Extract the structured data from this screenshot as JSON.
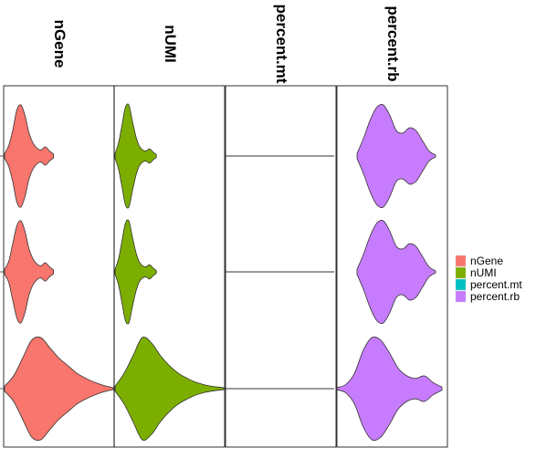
{
  "chart_data": {
    "type": "violin",
    "orientation": "horizontal",
    "panels": [
      {
        "name": "nGene",
        "color": "#F8766D",
        "violins": [
          {
            "spread": 0.0,
            "center": 0.0,
            "tail": 0.45,
            "widths": [
              0.05,
              0.2,
              0.5,
              0.9,
              1.0,
              0.8,
              0.45,
              0.25,
              0.15,
              0.12,
              0.18,
              0.1,
              0.04
            ]
          },
          {
            "spread": 0.0,
            "center": 0.0,
            "tail": 0.45,
            "widths": [
              0.05,
              0.2,
              0.55,
              0.9,
              1.0,
              0.8,
              0.45,
              0.25,
              0.15,
              0.12,
              0.18,
              0.1,
              0.04
            ]
          },
          {
            "spread": 0.0,
            "center": 0.0,
            "tail": 1.0,
            "widths": [
              0.05,
              0.25,
              0.6,
              0.95,
              1.0,
              0.8,
              0.6,
              0.45,
              0.3,
              0.2,
              0.12,
              0.06,
              0.02
            ]
          }
        ]
      },
      {
        "name": "nUMI",
        "color": "#7CAE00",
        "violins": [
          {
            "spread": 0.0,
            "center": 0.0,
            "tail": 0.38,
            "widths": [
              0.05,
              0.25,
              0.6,
              0.95,
              1.0,
              0.7,
              0.4,
              0.2,
              0.12,
              0.1,
              0.14,
              0.08,
              0.03
            ]
          },
          {
            "spread": 0.0,
            "center": 0.0,
            "tail": 0.38,
            "widths": [
              0.05,
              0.25,
              0.6,
              0.95,
              1.0,
              0.7,
              0.4,
              0.2,
              0.12,
              0.1,
              0.14,
              0.08,
              0.03
            ]
          },
          {
            "spread": 0.0,
            "center": 0.0,
            "tail": 1.0,
            "widths": [
              0.05,
              0.3,
              0.65,
              1.0,
              0.9,
              0.65,
              0.45,
              0.3,
              0.2,
              0.12,
              0.07,
              0.04,
              0.02
            ]
          }
        ]
      },
      {
        "name": "percent.mt",
        "color": "#00BFC4",
        "violins": [
          {
            "spread": 0.0,
            "center": 0.0,
            "tail": 0.0,
            "widths": []
          },
          {
            "spread": 0.0,
            "center": 0.0,
            "tail": 0.0,
            "widths": []
          },
          {
            "spread": 0.0,
            "center": 0.0,
            "tail": 0.0,
            "widths": []
          }
        ]
      },
      {
        "name": "percent.rb",
        "color": "#C77CFF",
        "violins": [
          {
            "spread": 0.0,
            "center": 0.0,
            "tail": 0.0,
            "widths": [
              0.05,
              0.35,
              0.7,
              0.95,
              1.0,
              0.8,
              0.5,
              0.45,
              0.55,
              0.5,
              0.3,
              0.1,
              0.02
            ]
          },
          {
            "spread": 0.0,
            "center": 0.0,
            "tail": 0.0,
            "widths": [
              0.05,
              0.35,
              0.7,
              0.95,
              1.0,
              0.8,
              0.5,
              0.45,
              0.55,
              0.5,
              0.3,
              0.1,
              0.02
            ]
          },
          {
            "spread": 0.0,
            "center": 0.0,
            "tail": 0.0,
            "widths": [
              0.02,
              0.08,
              0.3,
              0.75,
              1.0,
              0.95,
              0.7,
              0.4,
              0.25,
              0.2,
              0.25,
              0.12,
              0.03
            ]
          }
        ]
      }
    ],
    "legend": {
      "position": "right",
      "entries": [
        {
          "label": "nGene",
          "color": "#F8766D"
        },
        {
          "label": "nUMI",
          "color": "#7CAE00"
        },
        {
          "label": "percent.mt",
          "color": "#00BFC4"
        },
        {
          "label": "percent.rb",
          "color": "#C77CFF"
        }
      ]
    },
    "grid": false
  }
}
